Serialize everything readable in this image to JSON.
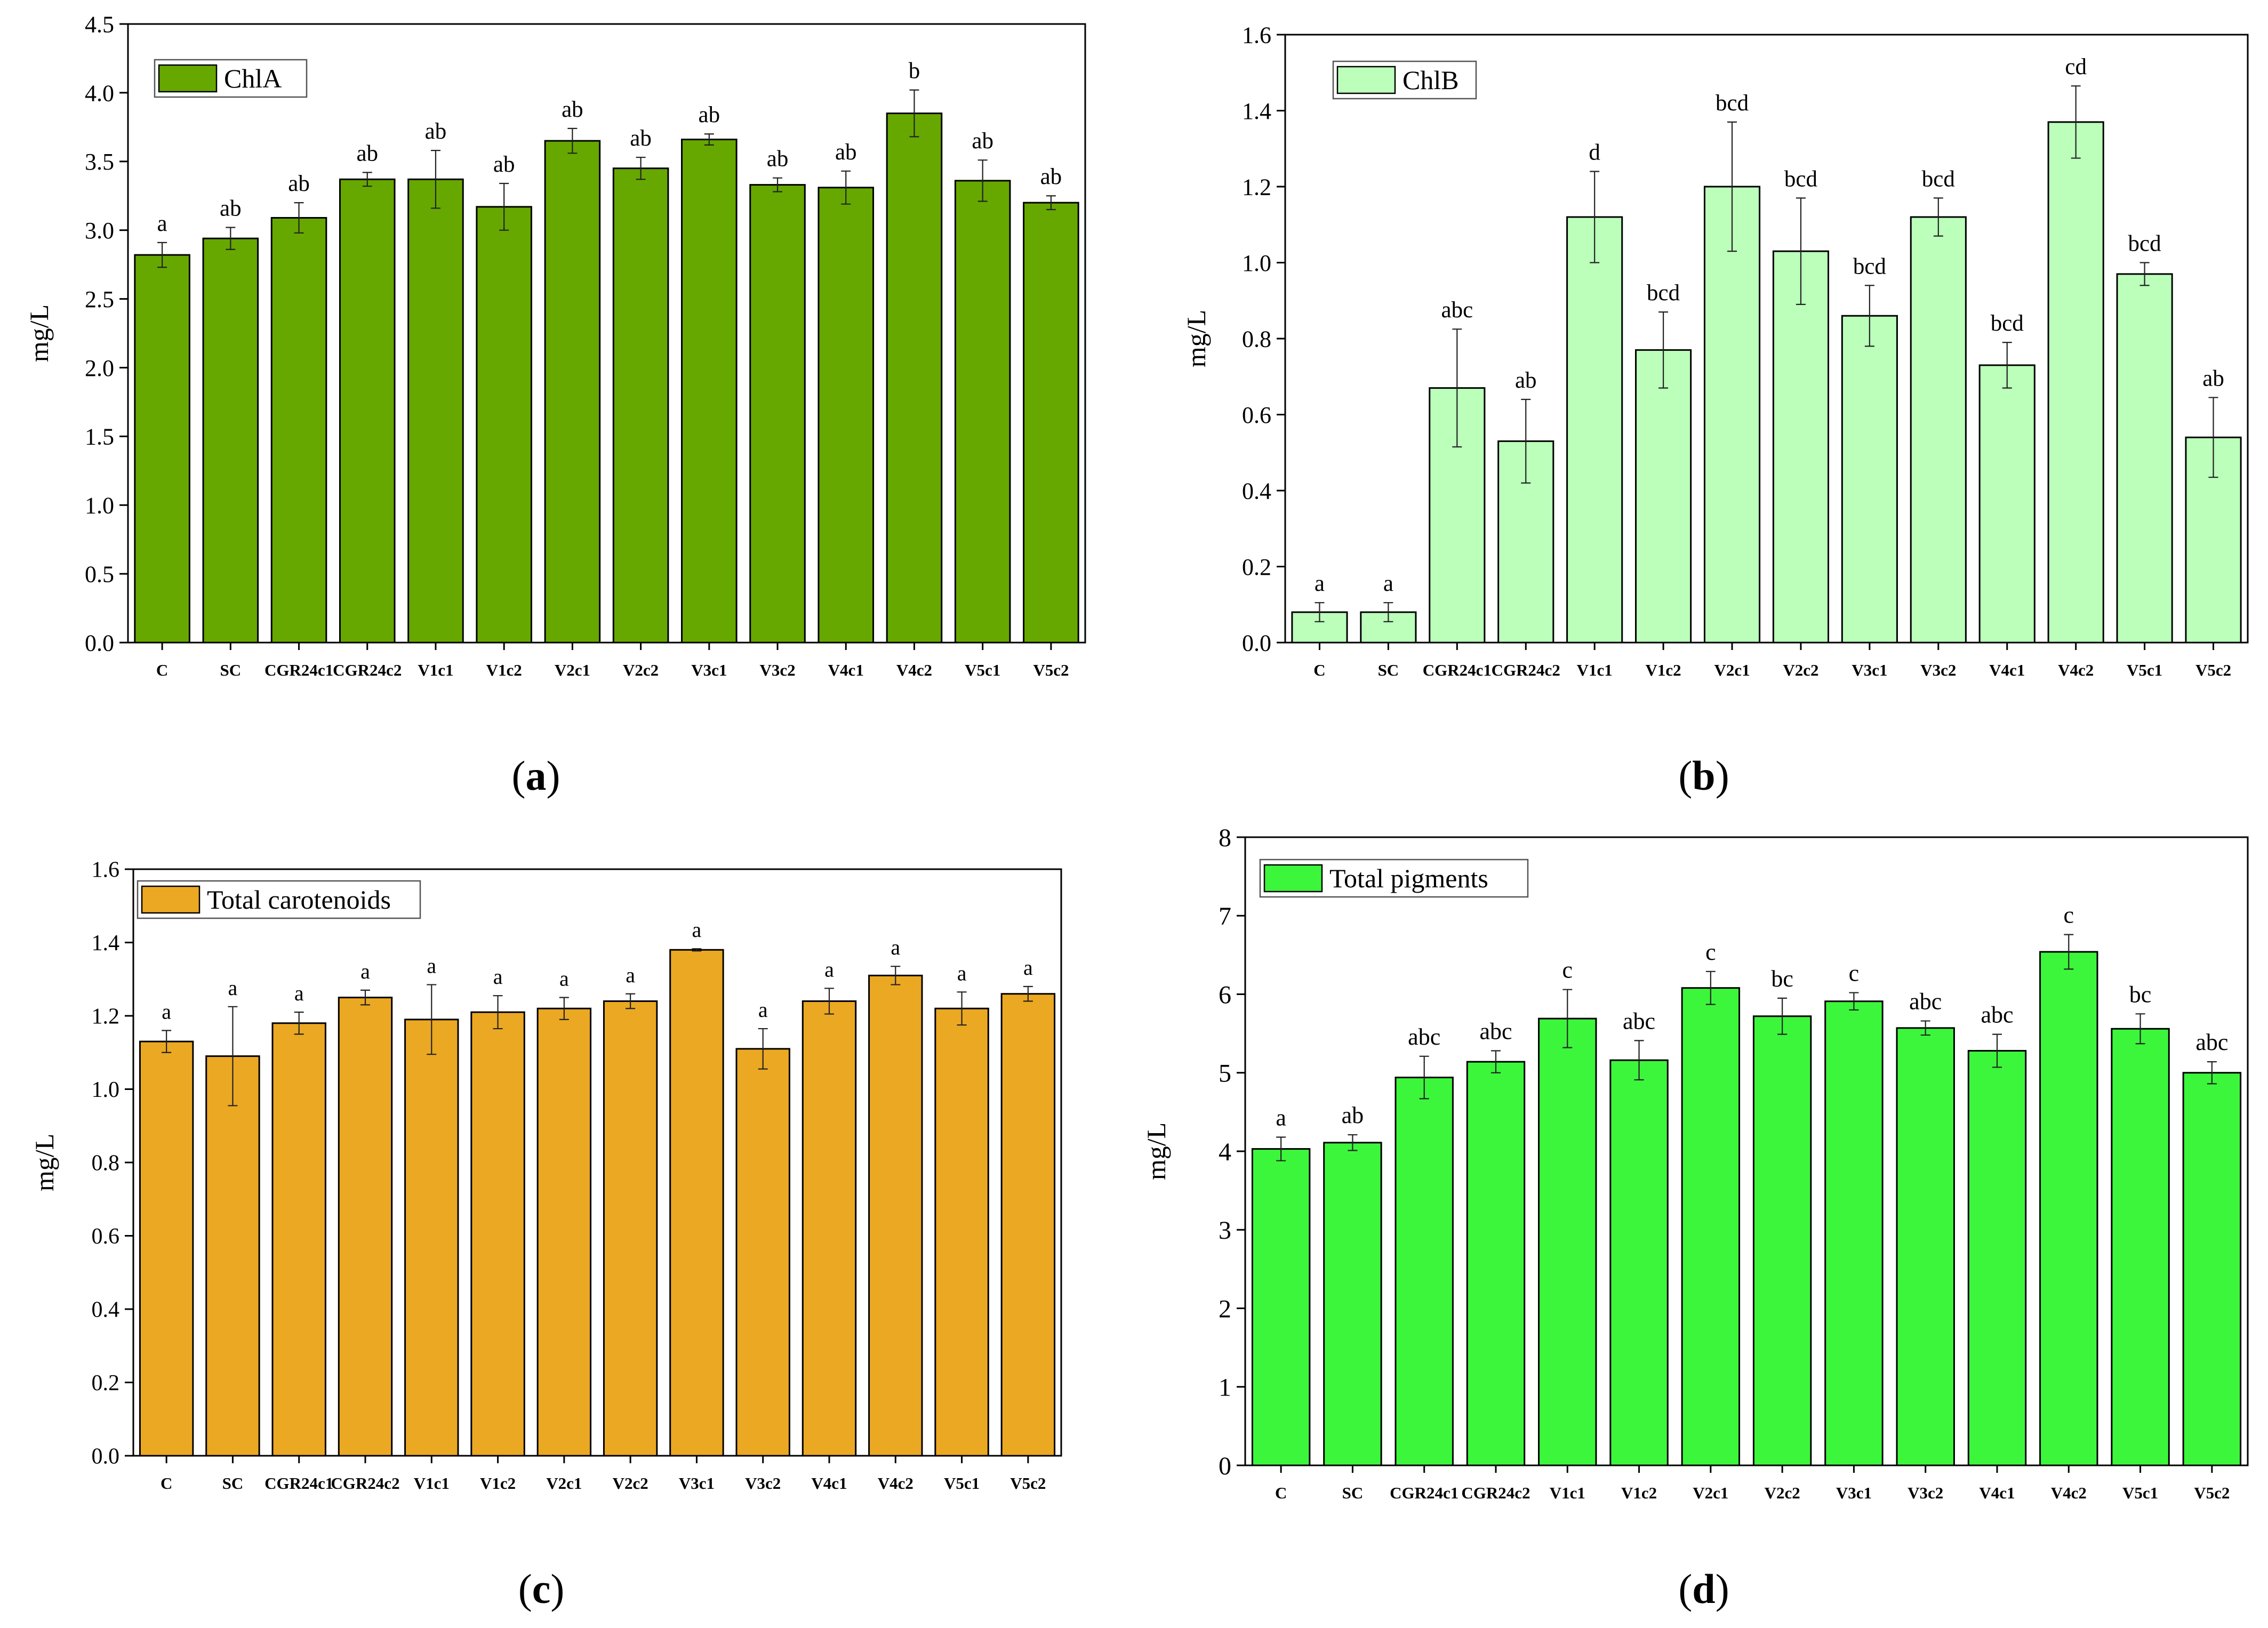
{
  "captions": {
    "a": {
      "open": "(",
      "letter": "a",
      "close": ")"
    },
    "b": {
      "open": "(",
      "letter": "b",
      "close": ")"
    },
    "c": {
      "open": "(",
      "letter": "c",
      "close": ")"
    },
    "d": {
      "open": "(",
      "letter": "d",
      "close": ")"
    }
  },
  "chart_data": [
    {
      "id": "a",
      "type": "bar",
      "title": "",
      "xlabel": "",
      "ylabel": "mg/L",
      "legend": {
        "label": "ChlA",
        "placement": "top-left"
      },
      "color": "#66a800",
      "ylim": [
        0,
        4.5
      ],
      "ytick_step": 0.5,
      "ytick_decimals": 1,
      "categories": [
        "C",
        "SC",
        "CGR24c1",
        "CGR24c2",
        "V1c1",
        "V1c2",
        "V2c1",
        "V2c2",
        "V3c1",
        "V3c2",
        "V4c1",
        "V4c2",
        "V5c1",
        "V5c2"
      ],
      "values": [
        2.82,
        2.94,
        3.09,
        3.37,
        3.37,
        3.17,
        3.65,
        3.45,
        3.66,
        3.33,
        3.31,
        3.85,
        3.36,
        3.2
      ],
      "errors": [
        0.09,
        0.08,
        0.11,
        0.05,
        0.21,
        0.17,
        0.09,
        0.08,
        0.04,
        0.05,
        0.12,
        0.17,
        0.15,
        0.05
      ],
      "letters": [
        "a",
        "ab",
        "ab",
        "ab",
        "ab",
        "ab",
        "ab",
        "ab",
        "ab",
        "ab",
        "ab",
        "b",
        "ab",
        "ab"
      ]
    },
    {
      "id": "b",
      "type": "bar",
      "title": "",
      "xlabel": "",
      "ylabel": "mg/L",
      "legend": {
        "label": "ChlB",
        "placement": "top-left"
      },
      "color": "#bbffbb",
      "ylim": [
        0,
        1.6
      ],
      "ytick_step": 0.2,
      "ytick_decimals": 1,
      "categories": [
        "C",
        "SC",
        "CGR24c1",
        "CGR24c2",
        "V1c1",
        "V1c2",
        "V2c1",
        "V2c2",
        "V3c1",
        "V3c2",
        "V4c1",
        "V4c2",
        "V5c1",
        "V5c2"
      ],
      "values": [
        0.08,
        0.08,
        0.67,
        0.53,
        1.12,
        0.77,
        1.2,
        1.03,
        0.86,
        1.12,
        0.73,
        1.37,
        0.97,
        0.54
      ],
      "errors": [
        0.025,
        0.025,
        0.155,
        0.11,
        0.12,
        0.1,
        0.17,
        0.14,
        0.08,
        0.05,
        0.06,
        0.095,
        0.03,
        0.105
      ],
      "letters": [
        "a",
        "a",
        "abc",
        "ab",
        "d",
        "bcd",
        "bcd",
        "bcd",
        "bcd",
        "bcd",
        "bcd",
        "cd",
        "bcd",
        "ab"
      ]
    },
    {
      "id": "c",
      "type": "bar",
      "title": "",
      "xlabel": "",
      "ylabel": "mg/L",
      "legend": {
        "label": "Total carotenoids",
        "placement": "top-left"
      },
      "color": "#eba823",
      "ylim": [
        0,
        1.6
      ],
      "ytick_step": 0.2,
      "ytick_decimals": 1,
      "categories": [
        "C",
        "SC",
        "CGR24c1",
        "CGR24c2",
        "V1c1",
        "V1c2",
        "V2c1",
        "V2c2",
        "V3c1",
        "V3c2",
        "V4c1",
        "V4c2",
        "V5c1",
        "V5c2"
      ],
      "values": [
        1.13,
        1.09,
        1.18,
        1.25,
        1.19,
        1.21,
        1.22,
        1.24,
        1.38,
        1.11,
        1.24,
        1.31,
        1.22,
        1.26
      ],
      "errors": [
        0.03,
        0.135,
        0.03,
        0.02,
        0.095,
        0.045,
        0.03,
        0.02,
        0.003,
        0.055,
        0.035,
        0.025,
        0.045,
        0.02
      ],
      "letters": [
        "a",
        "a",
        "a",
        "a",
        "a",
        "a",
        "a",
        "a",
        "a",
        "a",
        "a",
        "a",
        "a",
        "a"
      ]
    },
    {
      "id": "d",
      "type": "bar",
      "title": "",
      "xlabel": "",
      "ylabel": "mg/L",
      "legend": {
        "label": "Total pigments",
        "placement": "top-left"
      },
      "color": "#3cf63c",
      "ylim": [
        0,
        8
      ],
      "ytick_step": 1,
      "ytick_decimals": 0,
      "categories": [
        "C",
        "SC",
        "CGR24c1",
        "CGR24c2",
        "V1c1",
        "V1c2",
        "V2c1",
        "V2c2",
        "V3c1",
        "V3c2",
        "V4c1",
        "V4c2",
        "V5c1",
        "V5c2"
      ],
      "values": [
        4.03,
        4.11,
        4.94,
        5.14,
        5.69,
        5.16,
        6.08,
        5.72,
        5.91,
        5.57,
        5.28,
        6.54,
        5.56,
        5.0
      ],
      "errors": [
        0.15,
        0.1,
        0.27,
        0.14,
        0.37,
        0.25,
        0.21,
        0.23,
        0.11,
        0.09,
        0.21,
        0.22,
        0.19,
        0.14
      ],
      "letters": [
        "a",
        "ab",
        "abc",
        "abc",
        "c",
        "abc",
        "c",
        "bc",
        "c",
        "abc",
        "abc",
        "c",
        "bc",
        "abc"
      ]
    }
  ]
}
